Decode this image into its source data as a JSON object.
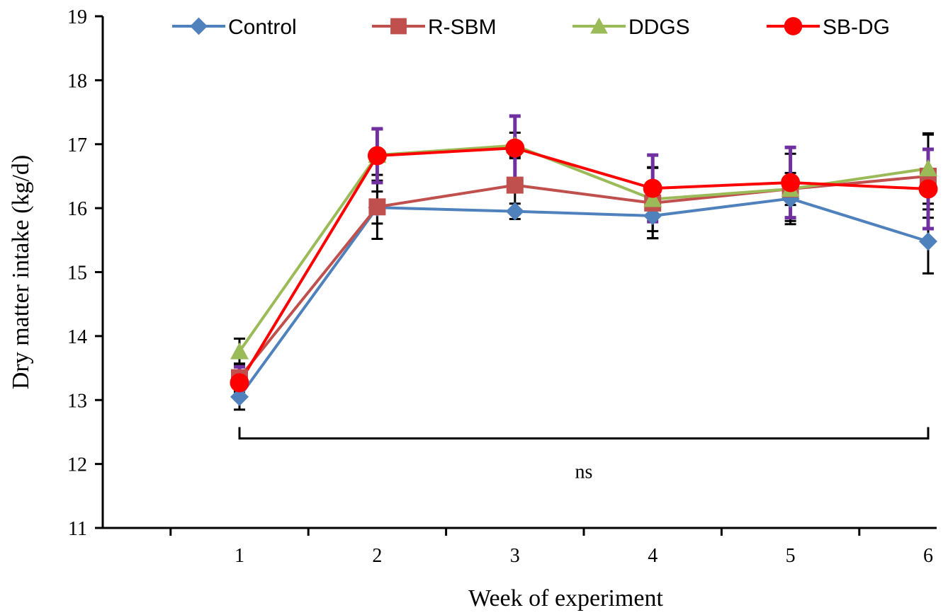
{
  "chart_data": {
    "type": "line",
    "title": "",
    "xlabel": "Week of experiment",
    "ylabel": "Dry matter intake (kg/d)",
    "x": [
      1,
      2,
      3,
      4,
      5,
      6
    ],
    "x_tick_labels": [
      "1",
      "2",
      "3",
      "4",
      "5",
      "6"
    ],
    "ylim": [
      11,
      19
    ],
    "y_ticks": [
      11,
      12,
      13,
      14,
      15,
      16,
      17,
      18,
      19
    ],
    "grid": false,
    "legend_position": "top",
    "series": [
      {
        "name": "Control",
        "marker": "diamond",
        "color": "#4F81BD",
        "values": [
          13.05,
          16.01,
          15.95,
          15.88,
          16.15,
          15.48
        ],
        "errors": [
          0.2,
          0.25,
          0.12,
          0.35,
          0.35,
          0.5
        ],
        "error_color": "#000000"
      },
      {
        "name": "R-SBM",
        "marker": "square",
        "color": "#C0504D",
        "values": [
          13.35,
          16.02,
          16.36,
          16.08,
          16.3,
          16.5
        ],
        "errors": [
          0.22,
          0.5,
          0.45,
          0.55,
          0.55,
          0.65
        ],
        "error_color": "#000000"
      },
      {
        "name": "DDGS",
        "marker": "triangle",
        "color": "#9BBB59",
        "values": [
          13.76,
          16.83,
          16.98,
          16.14,
          16.3,
          16.62
        ],
        "errors": [
          0.2,
          0.4,
          0.2,
          0.5,
          0.25,
          0.55
        ],
        "error_color": "#000000"
      },
      {
        "name": "SB-DG",
        "marker": "circle",
        "color": "#FF0000",
        "values": [
          13.27,
          16.82,
          16.94,
          16.31,
          16.4,
          16.3
        ],
        "errors": [
          0.25,
          0.42,
          0.5,
          0.52,
          0.55,
          0.62
        ],
        "error_color": "#7030A0"
      }
    ],
    "annotations": [
      {
        "type": "bracket",
        "x_from": 1,
        "x_to": 6,
        "y": 12.4,
        "label": "ns"
      }
    ]
  }
}
